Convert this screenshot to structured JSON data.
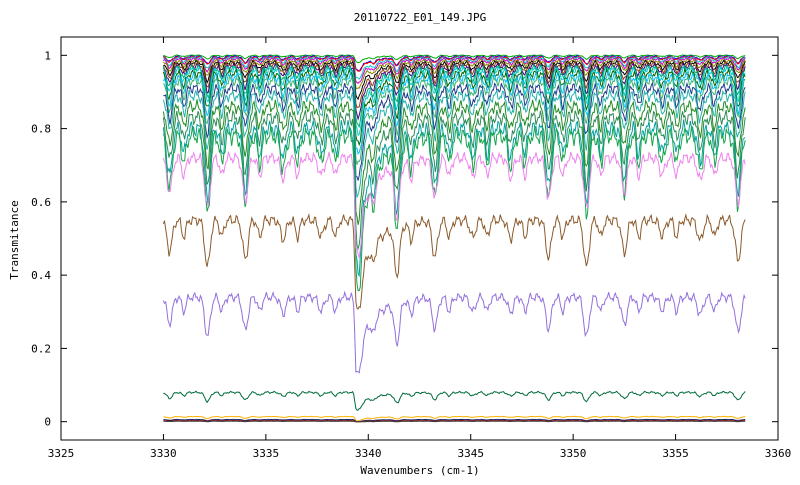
{
  "chart_data": {
    "type": "line",
    "title": "20110722_E01_149.JPG",
    "xlabel": "Wavenumbers (cm-1)",
    "ylabel": "Transmitance",
    "xlim": [
      3325,
      3360
    ],
    "ylim": [
      -0.05,
      1.05
    ],
    "x_ticks": [
      3325,
      3330,
      3335,
      3340,
      3345,
      3350,
      3355,
      3360
    ],
    "x_tick_labels": [
      "3325",
      "3330",
      "3335",
      "3340",
      "3345",
      "3350",
      "3355",
      "3360"
    ],
    "y_ticks": [
      0,
      0.2,
      0.4,
      0.6,
      0.8,
      1
    ],
    "y_tick_labels": [
      "0",
      "0.2",
      "0.4",
      "0.6",
      "0.8",
      "1"
    ],
    "grid": false,
    "legend": "none",
    "x_range_data": [
      3330,
      3358.4
    ],
    "strong_line_x": 3339.4,
    "series": [
      {
        "baseline": 1.0,
        "depth": 0.01,
        "color": "#00aa00"
      },
      {
        "baseline": 0.997,
        "depth": 0.02,
        "color": "#0000ff"
      },
      {
        "baseline": 0.995,
        "depth": 0.02,
        "color": "#ff0000"
      },
      {
        "baseline": 0.993,
        "depth": 0.03,
        "color": "#00cccc"
      },
      {
        "baseline": 0.99,
        "depth": 0.035,
        "color": "#cc00cc"
      },
      {
        "baseline": 0.985,
        "depth": 0.04,
        "color": "#888800"
      },
      {
        "baseline": 0.98,
        "depth": 0.05,
        "color": "#000000"
      },
      {
        "baseline": 0.975,
        "depth": 0.06,
        "color": "#8b4513"
      },
      {
        "baseline": 0.97,
        "depth": 0.07,
        "color": "#4b0082"
      },
      {
        "baseline": 0.965,
        "depth": 0.08,
        "color": "#00a86b"
      },
      {
        "baseline": 0.96,
        "depth": 0.09,
        "color": "#00ced1"
      },
      {
        "baseline": 0.95,
        "depth": 0.1,
        "color": "#006400"
      },
      {
        "baseline": 0.94,
        "depth": 0.11,
        "color": "#00bfff"
      },
      {
        "baseline": 0.93,
        "depth": 0.12,
        "color": "#3cb371"
      },
      {
        "baseline": 0.91,
        "depth": 0.13,
        "color": "#1e3a8a"
      },
      {
        "baseline": 0.89,
        "depth": 0.14,
        "color": "#20b2aa"
      },
      {
        "baseline": 0.86,
        "depth": 0.16,
        "color": "#228b22"
      },
      {
        "baseline": 0.83,
        "depth": 0.18,
        "color": "#2e8b57"
      },
      {
        "baseline": 0.8,
        "depth": 0.2,
        "color": "#00a0a0"
      },
      {
        "baseline": 0.78,
        "depth": 0.22,
        "color": "#16a34a"
      },
      {
        "baseline": 0.72,
        "depth": 0.14,
        "color": "#ee82ee"
      },
      {
        "baseline": 0.55,
        "depth": 0.13,
        "color": "#8b5a2b"
      },
      {
        "baseline": 0.34,
        "depth": 0.11,
        "color": "#9370db"
      },
      {
        "baseline": 0.08,
        "depth": 0.025,
        "color": "#006b3c"
      },
      {
        "baseline": 0.014,
        "depth": 0.006,
        "color": "#ffb000"
      },
      {
        "baseline": 0.006,
        "depth": 0.003,
        "color": "#1f2a6b"
      },
      {
        "baseline": 0.003,
        "depth": 0.002,
        "color": "#8b0000"
      },
      {
        "baseline": 0.001,
        "depth": 0.001,
        "color": "#444444"
      }
    ]
  }
}
